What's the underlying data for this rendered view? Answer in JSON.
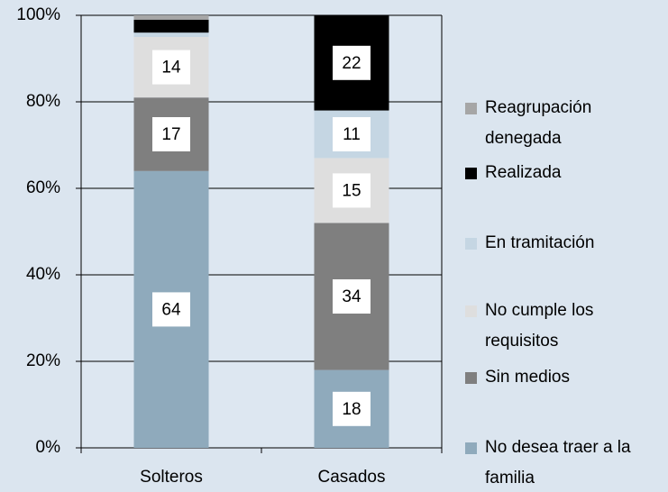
{
  "chart_data": {
    "type": "stacked_bar",
    "categories": [
      "Solteros",
      "Casados"
    ],
    "series": [
      {
        "name": "No desea traer a la familia",
        "color": "#8faabc",
        "values": [
          64,
          18
        ]
      },
      {
        "name": "Sin medios",
        "color": "#7f7f7f",
        "values": [
          17,
          34
        ]
      },
      {
        "name": "No cumple los requisitos",
        "color": "#dedede",
        "values": [
          14,
          15
        ]
      },
      {
        "name": "En tramitación",
        "color": "#c5d6e3",
        "values": [
          1,
          11
        ]
      },
      {
        "name": "Realizada",
        "color": "#000000",
        "values": [
          3,
          22
        ]
      },
      {
        "name": "Reagrupación denegada",
        "color": "#a6a6a6",
        "values": [
          1,
          0
        ]
      }
    ],
    "ylim": [
      0,
      100
    ],
    "yticks": [
      {
        "value": 0,
        "label": "0%"
      },
      {
        "value": 20,
        "label": "20%"
      },
      {
        "value": 40,
        "label": "40%"
      },
      {
        "value": 60,
        "label": "60%"
      },
      {
        "value": 80,
        "label": "80%"
      },
      {
        "value": 100,
        "label": "100%"
      }
    ],
    "grid": true,
    "legend": "right"
  }
}
